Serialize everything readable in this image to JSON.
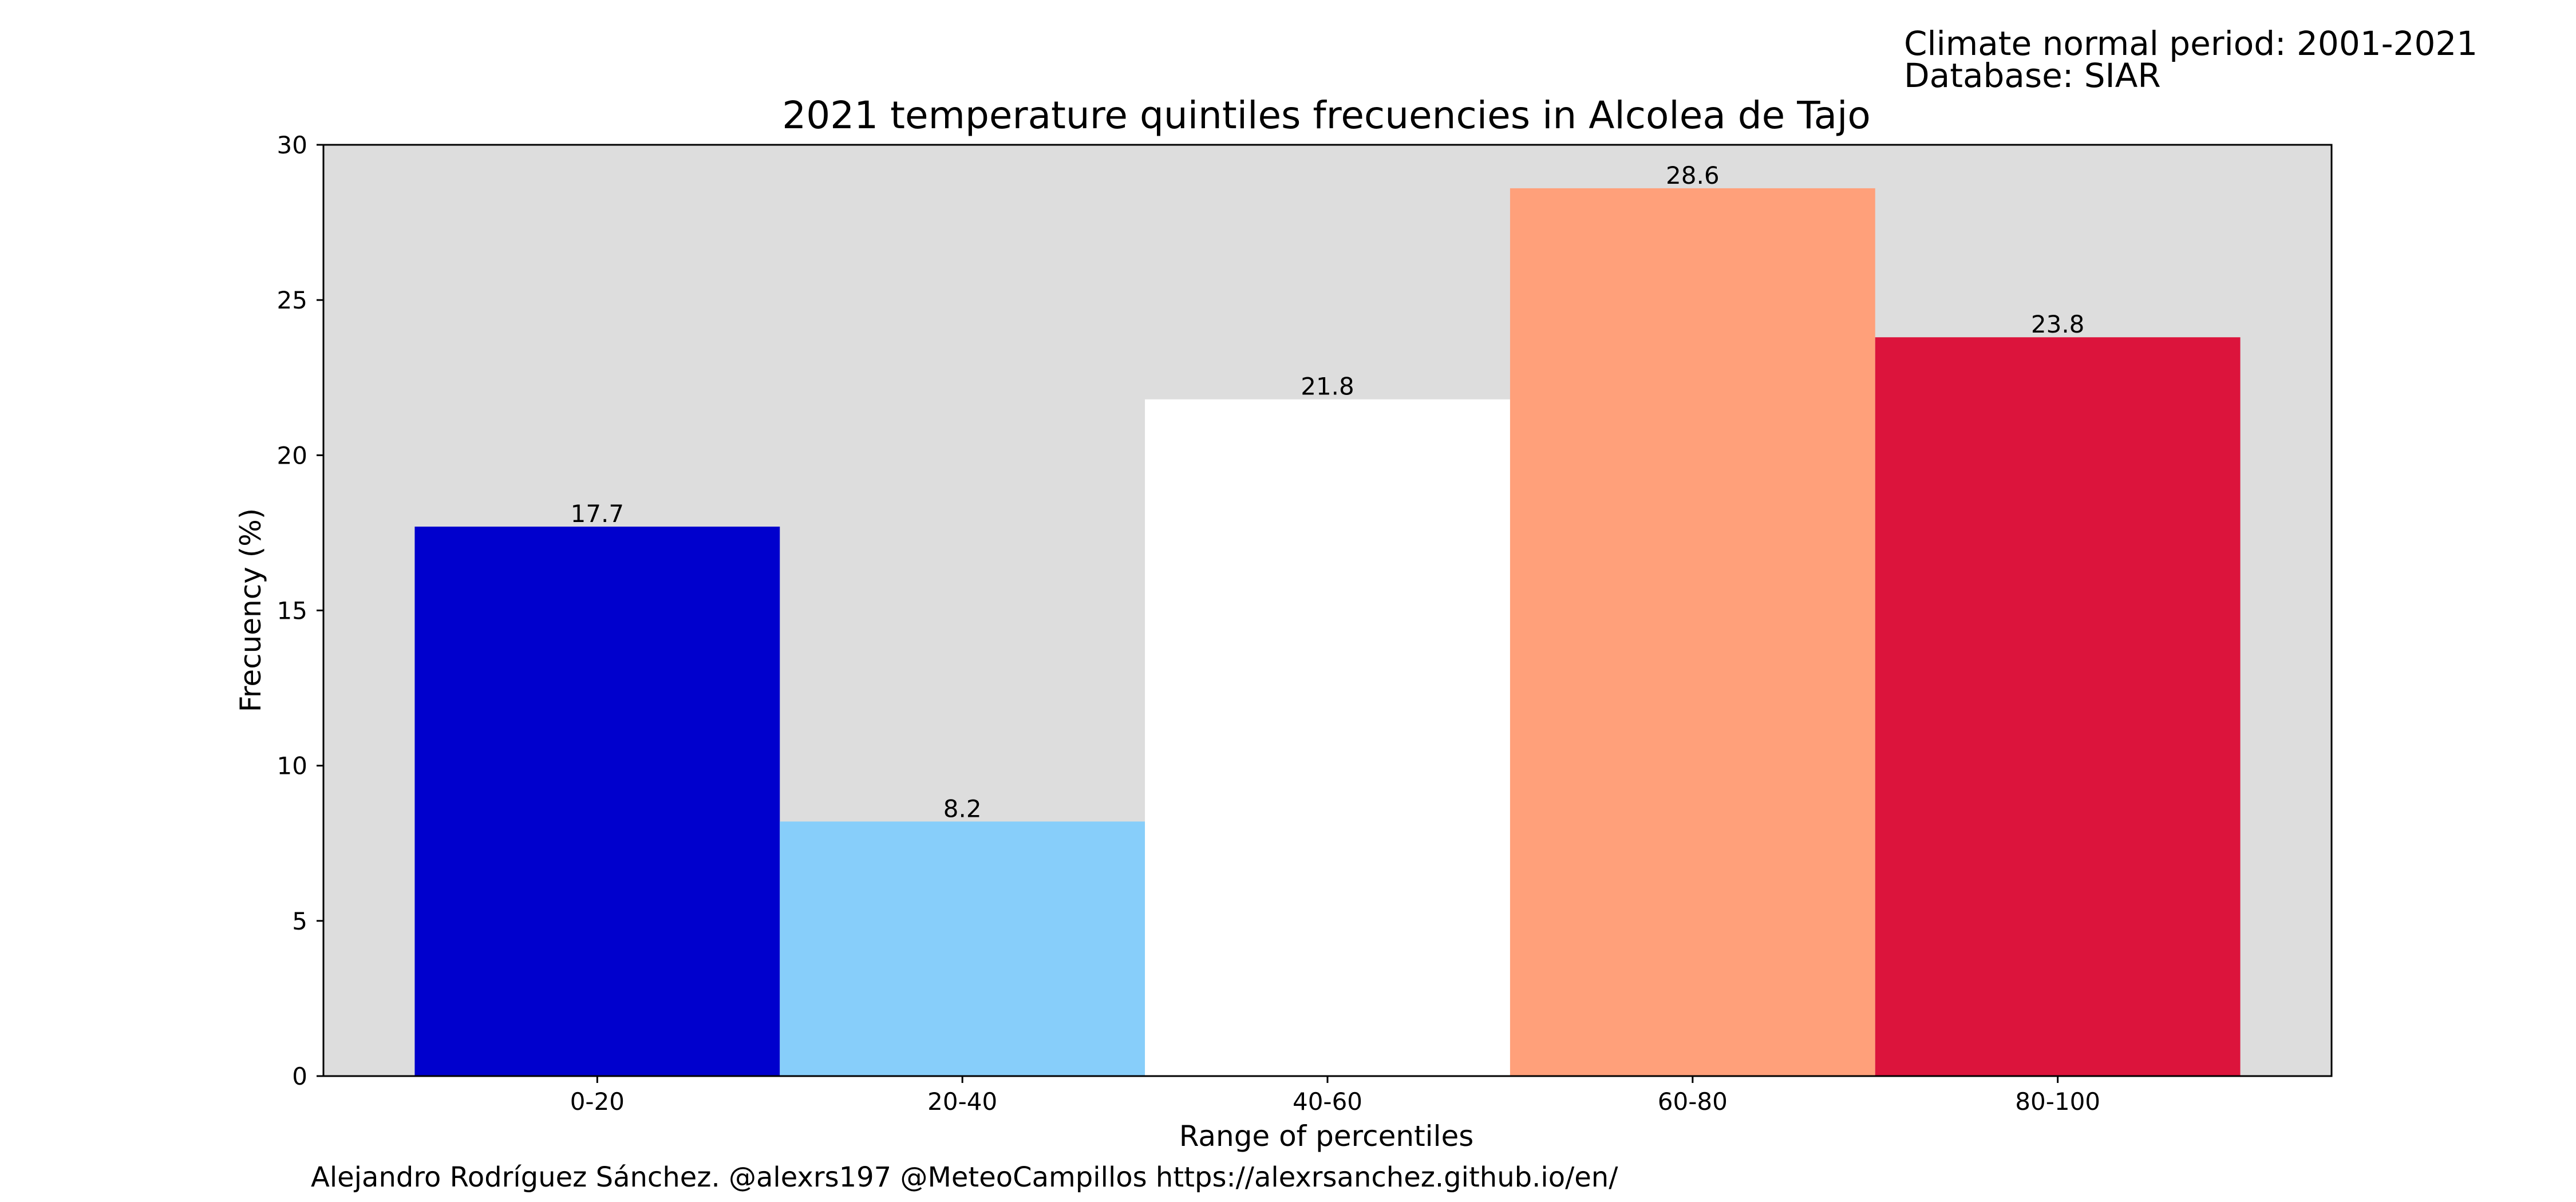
{
  "notes": {
    "climate_period": "Climate normal period: 2001-2021",
    "database": "Database: SIAR"
  },
  "credits": "Alejandro Rodríguez Sánchez. @alexrs197 @MeteoCampillos   https://alexrsanchez.github.io/en/",
  "chart_data": {
    "type": "bar",
    "title": "2021 temperature quintiles frecuencies in Alcolea de Tajo",
    "xlabel": "Range of percentiles",
    "ylabel": "Frecuency (%)",
    "categories": [
      "0-20",
      "20-40",
      "40-60",
      "60-80",
      "80-100"
    ],
    "values": [
      17.7,
      8.2,
      21.8,
      28.6,
      23.8
    ],
    "value_labels": [
      "17.7",
      "8.2",
      "21.8",
      "28.6",
      "23.8"
    ],
    "bar_colors": [
      "#0000cd",
      "#87cefa",
      "#ffffff",
      "#ffa07a",
      "#dc143c"
    ],
    "ylim": [
      0,
      30
    ],
    "yticks": [
      0,
      5,
      10,
      15,
      20,
      25,
      30
    ],
    "plot_background": "#dddddd",
    "grid": false,
    "legend": "none"
  }
}
